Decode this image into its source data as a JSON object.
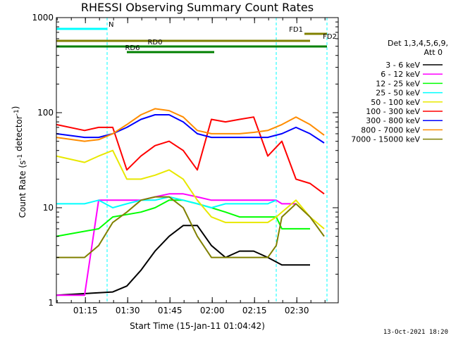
{
  "chart_data": {
    "type": "line",
    "title": "RHESSI Observing Summary Count Rates",
    "xlabel": "Start Time (15-Jan-11 01:04:42)",
    "ylabel": "Count Rate (s⁻¹ detector⁻¹)",
    "yscale": "log",
    "xunit": "minutes since 01:04:42",
    "xlim": [
      0,
      100
    ],
    "ylim": [
      1,
      1000
    ],
    "grid": false,
    "legend_position": "right",
    "x_tick_labels": [
      "01:15",
      "01:30",
      "01:45",
      "02:00",
      "02:15",
      "02:30"
    ],
    "y_tick_labels": [
      "1",
      "10",
      "100",
      "1000"
    ],
    "legend_header": [
      "Det 1,3,4,5,6,9,",
      "Att 0"
    ],
    "series": [
      {
        "name": "3 - 6 keV",
        "color": "#000000",
        "values": [
          [
            0,
            1.2
          ],
          [
            20,
            1.3
          ],
          [
            25,
            1.5
          ],
          [
            30,
            2.2
          ],
          [
            35,
            3.5
          ],
          [
            40,
            5
          ],
          [
            45,
            6.5
          ],
          [
            50,
            6.5
          ],
          [
            55,
            4
          ],
          [
            60,
            3
          ],
          [
            65,
            3.5
          ],
          [
            70,
            3.5
          ],
          [
            75,
            3
          ],
          [
            80,
            2.5
          ],
          [
            85,
            2.5
          ],
          [
            90,
            2.5
          ]
        ]
      },
      {
        "name": "6 - 12 keV",
        "color": "#ff00ff",
        "values": [
          [
            0,
            1.2
          ],
          [
            10,
            1.2
          ],
          [
            15,
            12
          ],
          [
            30,
            12
          ],
          [
            35,
            13
          ],
          [
            40,
            14
          ],
          [
            45,
            14
          ],
          [
            50,
            13
          ],
          [
            55,
            12
          ],
          [
            60,
            12
          ],
          [
            65,
            12
          ],
          [
            70,
            12
          ],
          [
            75,
            12
          ],
          [
            78,
            12
          ],
          [
            80,
            11
          ],
          [
            85,
            11
          ]
        ]
      },
      {
        "name": "12 - 25 keV",
        "color": "#00ff00",
        "values": [
          [
            0,
            5
          ],
          [
            15,
            6
          ],
          [
            20,
            8
          ],
          [
            30,
            9
          ],
          [
            35,
            10
          ],
          [
            40,
            12
          ],
          [
            45,
            12
          ],
          [
            50,
            11
          ],
          [
            55,
            10
          ],
          [
            60,
            9
          ],
          [
            65,
            8
          ],
          [
            70,
            8
          ],
          [
            75,
            8
          ],
          [
            78,
            8
          ],
          [
            80,
            6
          ],
          [
            90,
            6
          ]
        ]
      },
      {
        "name": "25 - 50 keV",
        "color": "#00ffff",
        "values": [
          [
            0,
            11
          ],
          [
            10,
            11
          ],
          [
            15,
            12
          ],
          [
            20,
            10
          ],
          [
            25,
            11
          ],
          [
            30,
            12
          ],
          [
            35,
            12
          ],
          [
            40,
            13
          ],
          [
            45,
            12
          ],
          [
            50,
            11
          ],
          [
            55,
            10
          ],
          [
            60,
            11
          ],
          [
            65,
            11
          ],
          [
            70,
            11
          ],
          [
            75,
            11
          ],
          [
            78,
            12
          ]
        ]
      },
      {
        "name": "50 - 100 keV",
        "color": "#e8e800",
        "values": [
          [
            0,
            35
          ],
          [
            10,
            30
          ],
          [
            15,
            35
          ],
          [
            20,
            40
          ],
          [
            25,
            20
          ],
          [
            30,
            20
          ],
          [
            35,
            22
          ],
          [
            40,
            25
          ],
          [
            45,
            20
          ],
          [
            50,
            12
          ],
          [
            55,
            8
          ],
          [
            60,
            7
          ],
          [
            65,
            7
          ],
          [
            70,
            7
          ],
          [
            75,
            7
          ],
          [
            78,
            8
          ],
          [
            80,
            9
          ],
          [
            85,
            12
          ],
          [
            90,
            8
          ],
          [
            95,
            6
          ]
        ]
      },
      {
        "name": "100 - 300 keV",
        "color": "#ff0000",
        "values": [
          [
            0,
            75
          ],
          [
            10,
            65
          ],
          [
            15,
            70
          ],
          [
            20,
            70
          ],
          [
            25,
            25
          ],
          [
            30,
            35
          ],
          [
            35,
            45
          ],
          [
            40,
            50
          ],
          [
            45,
            40
          ],
          [
            50,
            25
          ],
          [
            55,
            85
          ],
          [
            60,
            80
          ],
          [
            65,
            85
          ],
          [
            70,
            90
          ],
          [
            75,
            35
          ],
          [
            80,
            50
          ],
          [
            85,
            20
          ],
          [
            90,
            18
          ],
          [
            95,
            14
          ]
        ]
      },
      {
        "name": "300 - 800 keV",
        "color": "#0000ff",
        "values": [
          [
            0,
            60
          ],
          [
            10,
            55
          ],
          [
            15,
            55
          ],
          [
            20,
            60
          ],
          [
            25,
            70
          ],
          [
            30,
            85
          ],
          [
            35,
            95
          ],
          [
            40,
            95
          ],
          [
            45,
            80
          ],
          [
            50,
            60
          ],
          [
            55,
            55
          ],
          [
            60,
            55
          ],
          [
            65,
            55
          ],
          [
            70,
            55
          ],
          [
            75,
            55
          ],
          [
            80,
            60
          ],
          [
            85,
            70
          ],
          [
            90,
            60
          ],
          [
            95,
            48
          ]
        ]
      },
      {
        "name": "800 - 7000 keV",
        "color": "#ff8c00",
        "values": [
          [
            0,
            55
          ],
          [
            10,
            50
          ],
          [
            15,
            52
          ],
          [
            20,
            60
          ],
          [
            25,
            75
          ],
          [
            30,
            95
          ],
          [
            35,
            110
          ],
          [
            40,
            105
          ],
          [
            45,
            90
          ],
          [
            50,
            65
          ],
          [
            55,
            60
          ],
          [
            60,
            60
          ],
          [
            65,
            60
          ],
          [
            70,
            62
          ],
          [
            75,
            65
          ],
          [
            80,
            75
          ],
          [
            85,
            90
          ],
          [
            90,
            75
          ],
          [
            95,
            58
          ]
        ]
      },
      {
        "name": "7000 - 15000 keV",
        "color": "#808000",
        "values": [
          [
            0,
            3
          ],
          [
            10,
            3
          ],
          [
            15,
            4
          ],
          [
            20,
            7
          ],
          [
            25,
            9
          ],
          [
            30,
            12
          ],
          [
            35,
            13
          ],
          [
            40,
            13
          ],
          [
            45,
            10
          ],
          [
            50,
            5
          ],
          [
            55,
            3
          ],
          [
            60,
            3
          ],
          [
            65,
            3
          ],
          [
            70,
            3
          ],
          [
            75,
            3
          ],
          [
            78,
            4
          ],
          [
            80,
            8
          ],
          [
            85,
            11
          ],
          [
            90,
            8
          ],
          [
            95,
            5
          ]
        ]
      }
    ],
    "annotations": [
      {
        "label": "N",
        "color": "#00ffff",
        "x_start": 0,
        "x_end": 18
      },
      {
        "label": "FD1",
        "color": "#808000",
        "x_start": 88,
        "x_end": 96
      },
      {
        "label": "FD2",
        "color": "#808000",
        "x_start": 0,
        "x_end": 90
      },
      {
        "label": "RD0",
        "color": "#008000",
        "x_start": 0,
        "x_end": 96
      },
      {
        "label": "RD6",
        "color": "#008000",
        "x_start": 25,
        "x_end": 56
      }
    ],
    "vertical_markers": [
      {
        "x": 18,
        "color": "#00ffff",
        "style": "dashed"
      },
      {
        "x": 78,
        "color": "#00ffff",
        "style": "dashed"
      },
      {
        "x": 96,
        "color": "#00ffff",
        "style": "dashed"
      }
    ]
  },
  "footer": {
    "timestamp": "13-Oct-2021 18:20"
  }
}
